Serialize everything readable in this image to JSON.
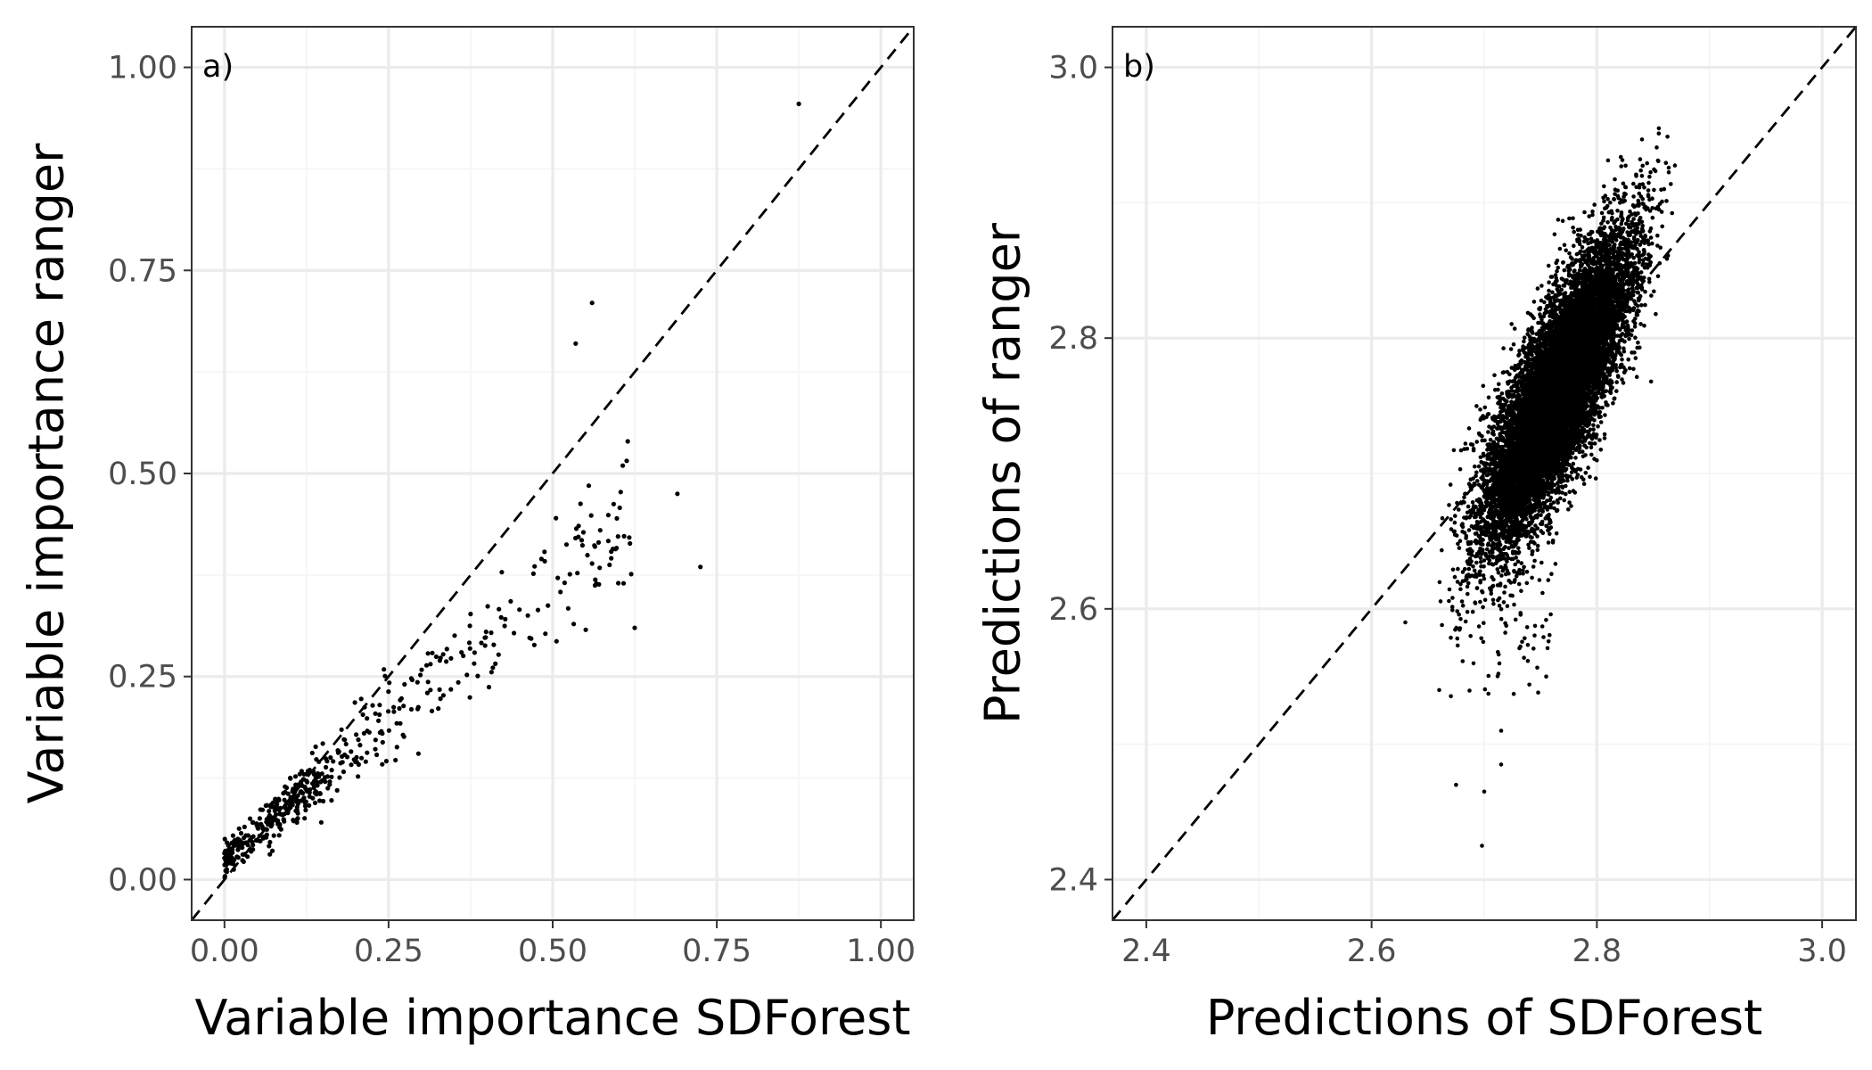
{
  "chart_data": [
    {
      "type": "scatter",
      "panel_label": "a)",
      "xlabel": "Variable importance SDForest",
      "ylabel": "Variable importance ranger",
      "xlim": [
        -0.05,
        1.05
      ],
      "ylim": [
        -0.05,
        1.05
      ],
      "xticks": [
        0,
        0.25,
        0.5,
        0.75,
        1.0
      ],
      "yticks": [
        0,
        0.25,
        0.5,
        0.75,
        1.0
      ],
      "xtick_labels": [
        "0.00",
        "0.25",
        "0.50",
        "0.75",
        "1.00"
      ],
      "ytick_labels": [
        "0.00",
        "0.25",
        "0.50",
        "0.75",
        "1.00"
      ],
      "grid": true,
      "reference_line": "y = x (dashed)",
      "point_count_approx": 500,
      "highlighted_points": [
        {
          "x": 0.875,
          "y": 0.955
        },
        {
          "x": 0.56,
          "y": 0.71
        },
        {
          "x": 0.535,
          "y": 0.66
        },
        {
          "x": 0.69,
          "y": 0.475
        },
        {
          "x": 0.725,
          "y": 0.385
        },
        {
          "x": 0.555,
          "y": 0.485
        },
        {
          "x": 0.625,
          "y": 0.31
        },
        {
          "x": 0.6,
          "y": 0.365
        },
        {
          "x": 0.505,
          "y": 0.445
        },
        {
          "x": 0.57,
          "y": 0.415
        }
      ],
      "bulk_trend": {
        "slope": 0.67,
        "intercept": 0.025,
        "x_range": [
          0.0,
          0.62
        ]
      }
    },
    {
      "type": "scatter",
      "panel_label": "b)",
      "xlabel": "Predictions of SDForest",
      "ylabel": "Predictions of ranger",
      "xlim": [
        2.37,
        3.03
      ],
      "ylim": [
        2.37,
        3.03
      ],
      "xticks": [
        2.4,
        2.6,
        2.8,
        3.0
      ],
      "yticks": [
        2.4,
        2.6,
        2.8,
        3.0
      ],
      "xtick_labels": [
        "2.4",
        "2.6",
        "2.8",
        "3.0"
      ],
      "ytick_labels": [
        "2.4",
        "2.6",
        "2.8",
        "3.0"
      ],
      "grid": true,
      "reference_line": "y = x (dashed)",
      "point_count_approx": 12000,
      "cloud": {
        "center_x": 2.765,
        "center_y": 2.76,
        "sd_x": 0.032,
        "sd_y": 0.055,
        "correlation": 0.8,
        "x_range": [
          2.66,
          2.87
        ],
        "y_range": [
          2.42,
          2.96
        ]
      },
      "outliers": [
        {
          "x": 2.698,
          "y": 2.425
        },
        {
          "x": 2.7,
          "y": 2.465
        },
        {
          "x": 2.675,
          "y": 2.47
        },
        {
          "x": 2.715,
          "y": 2.485
        },
        {
          "x": 2.715,
          "y": 2.51
        },
        {
          "x": 2.63,
          "y": 2.59
        },
        {
          "x": 2.66,
          "y": 2.54
        },
        {
          "x": 2.755,
          "y": 2.55
        },
        {
          "x": 2.73,
          "y": 2.635
        },
        {
          "x": 2.855,
          "y": 2.955
        }
      ]
    }
  ]
}
